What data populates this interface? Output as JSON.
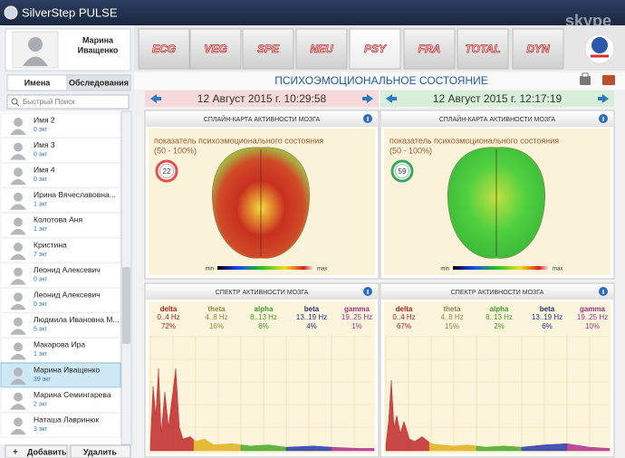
{
  "window": {
    "title": "SilverStep PULSE",
    "watermark": "skype"
  },
  "user": {
    "first_name": "Марина",
    "last_name": "Иващенко"
  },
  "tabs": [
    "Имена",
    "Обследования"
  ],
  "search_placeholder": "Быстрый Поиск",
  "patients": [
    {
      "name": "Имя 2",
      "ecg": "0 экг"
    },
    {
      "name": "Имя 3",
      "ecg": "0 экг"
    },
    {
      "name": "Имя 4",
      "ecg": "0 экг"
    },
    {
      "name": "Ирина Вячеславовна...",
      "ecg": "1 экг"
    },
    {
      "name": "Колотова Аня",
      "ecg": "1 экг"
    },
    {
      "name": "Кристина",
      "ecg": "7 экг"
    },
    {
      "name": "Леонид Алексевич",
      "ecg": "0 экг"
    },
    {
      "name": "Леонид Алексевич",
      "ecg": "0 экг"
    },
    {
      "name": "Людмила Ивановна М...",
      "ecg": "5 экг"
    },
    {
      "name": "Макарова Ира",
      "ecg": "1 экг"
    },
    {
      "name": "Марина Иващенко",
      "ecg": "39 экг"
    },
    {
      "name": "Марина Семингарева",
      "ecg": "2 экг"
    },
    {
      "name": "Наташа Лавринюк",
      "ecg": "3 экг"
    }
  ],
  "buttons": [
    "Добавить",
    "Удалить"
  ],
  "modules": [
    "ECG",
    "VEG",
    "SPE",
    "NEU",
    "PSY",
    "FRA",
    "TOTAL",
    "DYN"
  ],
  "page_title": "ПСИХОЭМОЦИОНАЛЬНОЕ СОСТОЯНИЕ",
  "sessions": [
    {
      "date": "12 Август 2015 г. 10:29:58",
      "spline_title": "СПЛАЙН-КАРТА АКТИВНОСТИ МОЗГА",
      "indicator_label": "показатель психоэмоционального состояния",
      "indicator_range": "(50 - 100%)",
      "indicator_value": "22",
      "scale_min": "min",
      "scale_max": "max",
      "spectrum_title": "СПЕКТР АКТИВНОСТИ МОЗГА",
      "bands": [
        {
          "name": "delta",
          "range": "0..4 Hz",
          "share": "72%"
        },
        {
          "name": "theta",
          "range": "4..8 Hz",
          "share": "16%"
        },
        {
          "name": "alpha",
          "range": "8..13 Hz",
          "share": "8%"
        },
        {
          "name": "beta",
          "range": "13..19 Hz",
          "share": "4%"
        },
        {
          "name": "gamma",
          "range": "19..25 Hz",
          "share": "1%"
        }
      ]
    },
    {
      "date": "12 Август 2015 г. 12:17:19",
      "spline_title": "СПЛАЙН-КАРТА АКТИВНОСТИ МОЗГА",
      "indicator_label": "показатель психоэмоционального состояния",
      "indicator_range": "(50 - 100%)",
      "indicator_value": "59",
      "scale_min": "min",
      "scale_max": "max",
      "spectrum_title": "СПЕКТР АКТИВНОСТИ МОЗГА",
      "bands": [
        {
          "name": "delta",
          "range": "0..4 Hz",
          "share": "67%"
        },
        {
          "name": "theta",
          "range": "4..8 Hz",
          "share": "15%"
        },
        {
          "name": "alpha",
          "range": "8..13 Hz",
          "share": "2%"
        },
        {
          "name": "beta",
          "range": "13..19 Hz",
          "share": "6%"
        },
        {
          "name": "gamma",
          "range": "19..25 Hz",
          "share": "10%"
        }
      ]
    }
  ]
}
